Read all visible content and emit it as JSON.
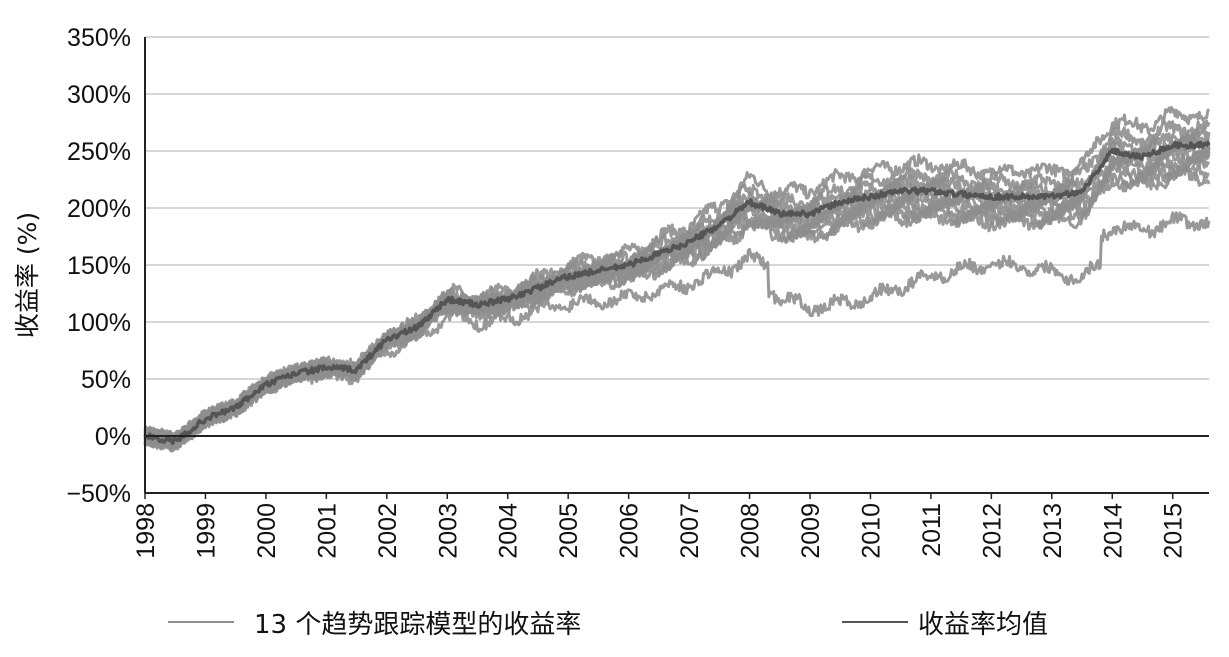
{
  "chart_data": {
    "type": "line",
    "title": "",
    "xlabel": "",
    "ylabel": "收益率 (%)",
    "x_ticks": [
      "1998",
      "1999",
      "2000",
      "2001",
      "2002",
      "2003",
      "2004",
      "2005",
      "2006",
      "2007",
      "2008",
      "2009",
      "2010",
      "2011",
      "2012",
      "2013",
      "2014",
      "2015"
    ],
    "y_ticks": [
      "350%",
      "300%",
      "250%",
      "200%",
      "150%",
      "100%",
      "50%",
      "0%",
      "−50%"
    ],
    "xlim": [
      1998,
      2015.6
    ],
    "ylim": [
      -50,
      350
    ],
    "grid": true,
    "legend_position": "bottom",
    "colors": {
      "models": "#8e8e8e",
      "mean": "#555555",
      "axis": "#222222",
      "grid": "#bdbdbd"
    },
    "series": [
      {
        "name": "13 个趋势跟踪模型的收益率",
        "role": "models",
        "x": [
          1998,
          1998.5,
          1999,
          1999.5,
          2000,
          2000.5,
          2001,
          2001.5,
          2002,
          2002.5,
          2003,
          2003.5,
          2004,
          2004.5,
          2005,
          2005.5,
          2006,
          2006.5,
          2007,
          2007.5,
          2008,
          2008.5,
          2009,
          2009.5,
          2010,
          2010.5,
          2011,
          2011.5,
          2012,
          2012.5,
          2013,
          2013.5,
          2014,
          2014.5,
          2015,
          2015.4
        ],
        "final_values": [
          282,
          270,
          262,
          258,
          255,
          252,
          248,
          245,
          240,
          236,
          232,
          228,
          188
        ]
      },
      {
        "name": "收益率均值",
        "role": "mean",
        "x": [
          1998,
          1998.5,
          1999,
          1999.5,
          2000,
          2000.5,
          2001,
          2001.5,
          2002,
          2002.5,
          2003,
          2003.5,
          2004,
          2004.5,
          2005,
          2005.5,
          2006,
          2006.5,
          2007,
          2007.5,
          2008,
          2008.5,
          2009,
          2009.5,
          2010,
          2010.5,
          2011,
          2011.5,
          2012,
          2012.5,
          2013,
          2013.5,
          2014,
          2014.5,
          2015,
          2015.4
        ],
        "values": [
          0,
          -5,
          15,
          25,
          45,
          55,
          60,
          58,
          85,
          95,
          120,
          115,
          120,
          130,
          140,
          145,
          150,
          160,
          170,
          185,
          205,
          195,
          195,
          205,
          210,
          215,
          215,
          212,
          210,
          210,
          210,
          215,
          250,
          245,
          255,
          255
        ]
      }
    ]
  }
}
